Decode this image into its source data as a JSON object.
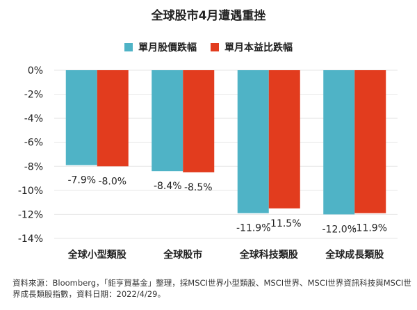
{
  "colors": {
    "series1": "#4fb3c6",
    "series2": "#e23c1e",
    "grid": "#e6e6e6",
    "text": "#222222"
  },
  "chart_data": {
    "type": "bar",
    "title": "全球股市4月遭遇重挫",
    "categories": [
      "全球小型類股",
      "全球股市",
      "全球科技類股",
      "全球成長類股"
    ],
    "series": [
      {
        "name": "單月股價跌幅",
        "values": [
          -7.9,
          -8.4,
          -11.9,
          -12.0
        ],
        "labels": [
          "-7.9%",
          "-8.4%",
          "-11.9%",
          "-12.0%"
        ]
      },
      {
        "name": "單月本益比跌幅",
        "values": [
          -8.0,
          -8.5,
          -11.5,
          -11.9
        ],
        "labels": [
          "-8.0%",
          "-8.5%",
          "-11.5%",
          "-11.9%"
        ]
      }
    ],
    "yticks": [
      "0%",
      "-2%",
      "-4%",
      "-6%",
      "-8%",
      "-10%",
      "-12%",
      "-14%"
    ],
    "ylim": [
      -14,
      0
    ],
    "grid": true,
    "legend_position": "top-center"
  },
  "footer": {
    "source_note": "資料來源：Bloomberg，「鉅亨買基金」整理，採MSCI世界小型類股、MSCI世界、MSCI世界資訊科技與MSCI世界成長類股指數，資料日期：2022/4/29。"
  }
}
